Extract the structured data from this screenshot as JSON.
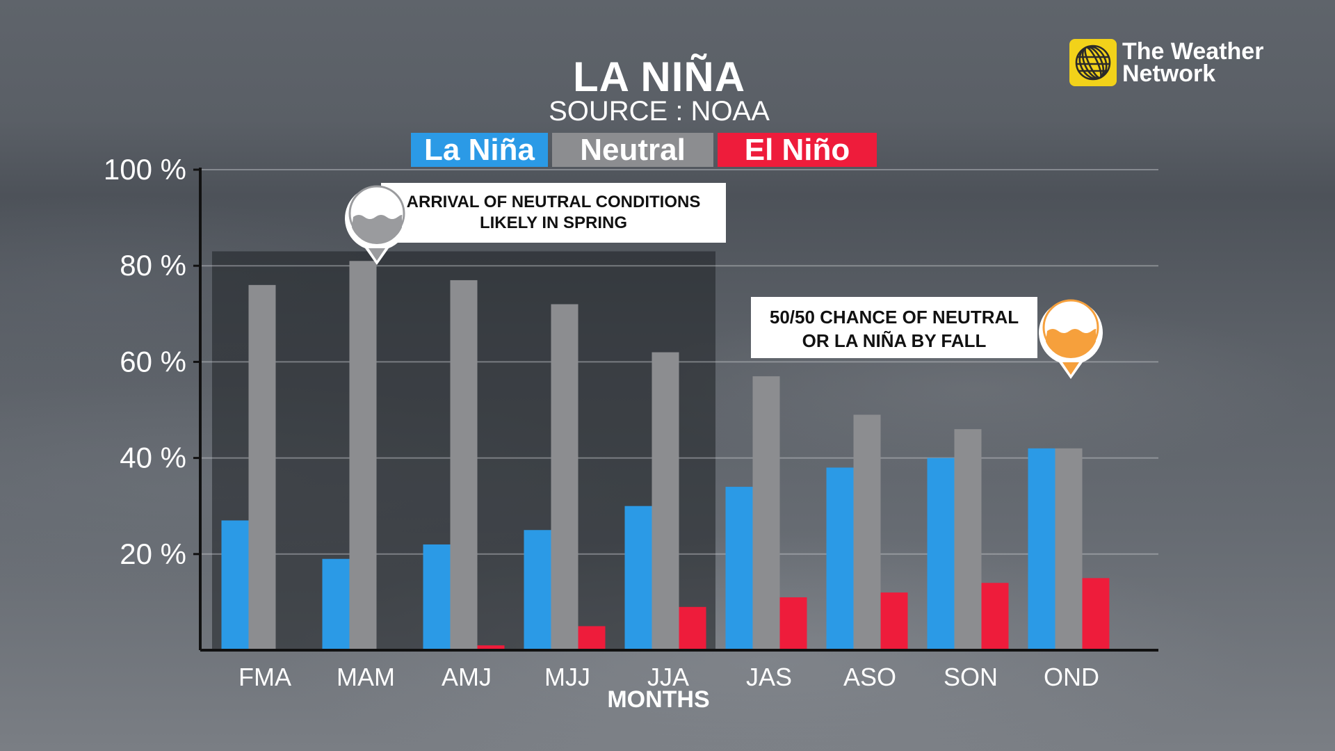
{
  "header": {
    "title": "LA NIÑA",
    "source": "SOURCE : NOAA"
  },
  "logo": {
    "line1": "The Weather",
    "line2": "Network",
    "icon": "globe-icon",
    "color": "#f2d21a"
  },
  "legend": [
    {
      "label": "La Niña",
      "color": "#2b9ae6"
    },
    {
      "label": "Neutral",
      "color": "#8c8d90"
    },
    {
      "label": "El Niño",
      "color": "#ee1c3b"
    }
  ],
  "annotations": {
    "spring": {
      "line1": "ARRIVAL OF NEUTRAL CONDITIONS",
      "line2": "LIKELY IN SPRING",
      "icon": "water-level-icon",
      "color": "#9a9b9e"
    },
    "fall": {
      "line1": "50/50 CHANCE OF NEUTRAL",
      "line2": "OR LA NIÑA BY FALL",
      "icon": "water-level-icon",
      "color": "#f6a03c"
    }
  },
  "chart_data": {
    "type": "bar",
    "title": "LA NIÑA",
    "subtitle": "SOURCE : NOAA",
    "xlabel": "MONTHS",
    "ylabel": "",
    "ylim": [
      0,
      100
    ],
    "yticks": [
      20,
      40,
      60,
      80,
      100
    ],
    "ytick_labels": [
      "20 %",
      "40 %",
      "60 %",
      "80 %",
      "100 %"
    ],
    "grid": true,
    "highlight_categories": [
      "FMA",
      "MAM",
      "AMJ",
      "MJJ",
      "JJA"
    ],
    "categories": [
      "FMA",
      "MAM",
      "AMJ",
      "MJJ",
      "JJA",
      "JAS",
      "ASO",
      "SON",
      "OND"
    ],
    "series": [
      {
        "name": "La Niña",
        "color": "#2b9ae6",
        "values": [
          27,
          19,
          22,
          25,
          30,
          34,
          38,
          40,
          42
        ]
      },
      {
        "name": "Neutral",
        "color": "#8c8d90",
        "values": [
          76,
          81,
          77,
          72,
          62,
          57,
          49,
          46,
          42
        ]
      },
      {
        "name": "El Niño",
        "color": "#ee1c3b",
        "values": [
          0,
          0,
          1,
          5,
          9,
          11,
          12,
          14,
          15
        ]
      }
    ]
  }
}
